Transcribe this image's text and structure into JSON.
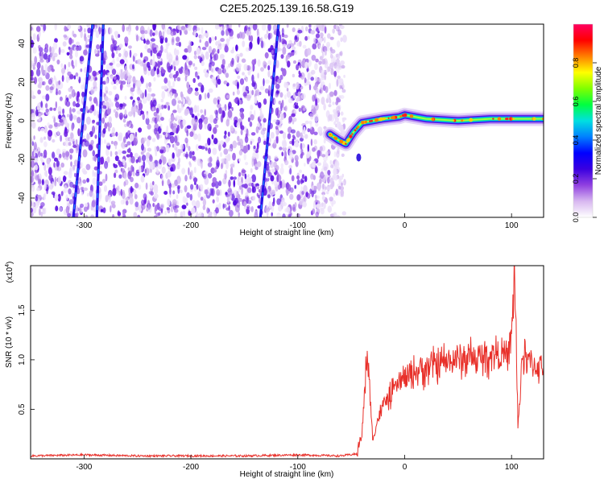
{
  "title": "C2E5.2025.139.16.58.G19",
  "chart_data": [
    {
      "type": "heatmap",
      "xlabel": "Height of straight line (km)",
      "ylabel": "Frequency (Hz)",
      "xlim": [
        -350,
        130
      ],
      "ylim": [
        -50,
        50
      ],
      "xticks": [
        -300,
        -200,
        -100,
        0,
        100
      ],
      "yticks": [
        -40,
        -20,
        0,
        20,
        40
      ],
      "colorbar": {
        "label": "Normalized spectral amplitude",
        "range": [
          0,
          1
        ],
        "ticks": [
          "0.0",
          "0.2",
          "0.4",
          "0.6",
          "0.8"
        ],
        "tick_values": [
          0,
          0.2,
          0.4,
          0.6,
          0.8
        ],
        "colors": [
          "#ffffff",
          "#d8b8f0",
          "#9040e0",
          "#3a00e0",
          "#0000ff",
          "#0080ff",
          "#00e0e0",
          "#00ff40",
          "#80ff00",
          "#ffff00",
          "#ff8000",
          "#ff0000",
          "#ff0060"
        ]
      },
      "noise_region_x": [
        -350,
        -65
      ],
      "noise_streaks": [
        {
          "x_at_top": -292,
          "x_at_bottom": -310
        },
        {
          "x_at_top": -282,
          "x_at_bottom": -288
        },
        {
          "x_at_top": -118,
          "x_at_bottom": -135
        }
      ],
      "signal_trace": [
        {
          "x": -70,
          "y": -7
        },
        {
          "x": -62,
          "y": -10
        },
        {
          "x": -55,
          "y": -12
        },
        {
          "x": -48,
          "y": -6
        },
        {
          "x": -40,
          "y": -1
        },
        {
          "x": -30,
          "y": 0
        },
        {
          "x": -20,
          "y": 1
        },
        {
          "x": -5,
          "y": 2
        },
        {
          "x": 0,
          "y": 3
        },
        {
          "x": 20,
          "y": 1
        },
        {
          "x": 50,
          "y": 0
        },
        {
          "x": 80,
          "y": 1
        },
        {
          "x": 100,
          "y": 1
        },
        {
          "x": 130,
          "y": 1
        }
      ],
      "isolated_blob": {
        "x": -43,
        "y": -19
      }
    },
    {
      "type": "line",
      "xlabel": "Height of straight line (km)",
      "ylabel": "SNR (10 * v/v)",
      "multiplier_label": "(x10",
      "multiplier_exp": "4",
      "multiplier_close": ")",
      "xlim": [
        -350,
        130
      ],
      "ylim": [
        0,
        1.95
      ],
      "xticks": [
        -300,
        -200,
        -100,
        0,
        100
      ],
      "yticks": [
        "0.5",
        "1.0",
        "1.5"
      ],
      "ytick_values": [
        0.5,
        1.0,
        1.5
      ],
      "color": "#e8302a",
      "series": [
        {
          "x": [
            -350,
            -300,
            -250,
            -200,
            -150,
            -100,
            -60,
            -45,
            -40,
            -35,
            -30,
            -25,
            -20,
            -15,
            -10,
            -5,
            0,
            10,
            20,
            30,
            40,
            50,
            60,
            70,
            80,
            90,
            95,
            100,
            103,
            106,
            110,
            120,
            130
          ],
          "y": [
            0.03,
            0.04,
            0.03,
            0.03,
            0.03,
            0.04,
            0.03,
            0.05,
            0.25,
            1.08,
            0.2,
            0.4,
            0.55,
            0.6,
            0.7,
            0.78,
            0.8,
            0.88,
            0.92,
            0.95,
            0.98,
            1.0,
            1.02,
            1.0,
            1.05,
            1.08,
            1.0,
            1.2,
            1.95,
            0.3,
            1.05,
            0.95,
            0.92
          ]
        }
      ]
    }
  ]
}
